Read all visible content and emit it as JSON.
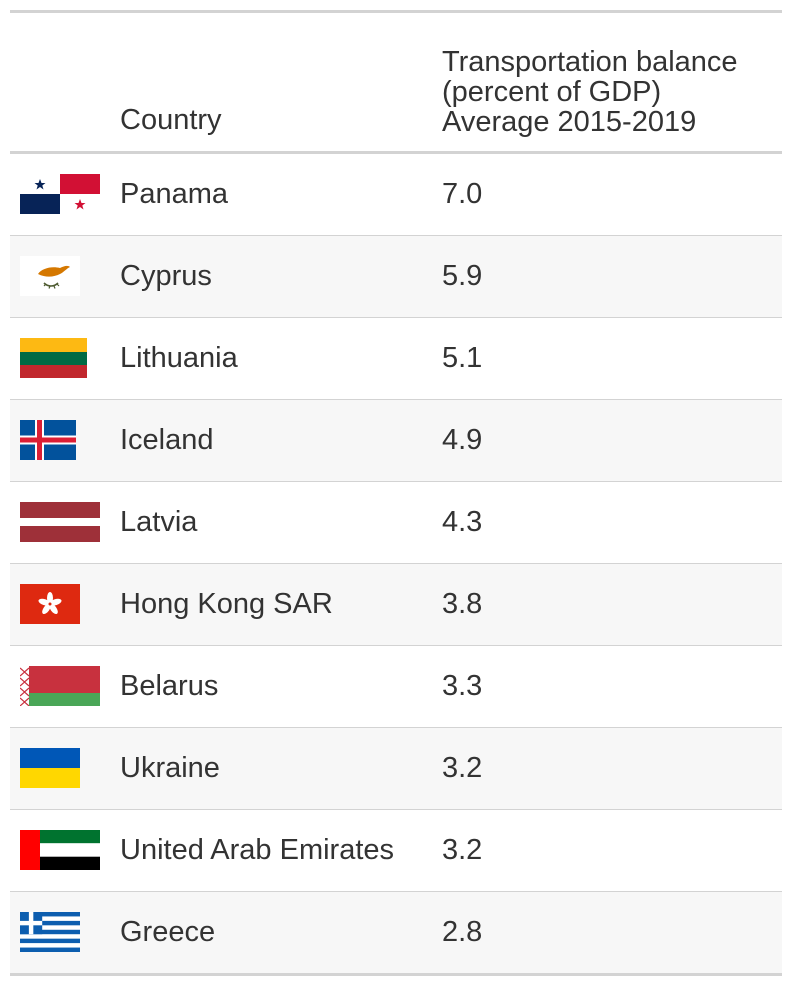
{
  "table": {
    "header": {
      "country": "Country",
      "metric_lines": [
        "Transportation balance",
        "(percent of GDP)",
        "Average 2015-2019"
      ]
    },
    "rows": [
      {
        "flag": "panama-flag-icon",
        "country": "Panama",
        "value": "7.0"
      },
      {
        "flag": "cyprus-flag-icon",
        "country": "Cyprus",
        "value": "5.9"
      },
      {
        "flag": "lithuania-flag-icon",
        "country": "Lithuania",
        "value": "5.1"
      },
      {
        "flag": "iceland-flag-icon",
        "country": "Iceland",
        "value": "4.9"
      },
      {
        "flag": "latvia-flag-icon",
        "country": "Latvia",
        "value": "4.3"
      },
      {
        "flag": "hong-kong-flag-icon",
        "country": "Hong Kong SAR",
        "value": "3.8"
      },
      {
        "flag": "belarus-flag-icon",
        "country": "Belarus",
        "value": "3.3"
      },
      {
        "flag": "ukraine-flag-icon",
        "country": "Ukraine",
        "value": "3.2"
      },
      {
        "flag": "uae-flag-icon",
        "country": "United Arab Emirates",
        "value": "3.2"
      },
      {
        "flag": "greece-flag-icon",
        "country": "Greece",
        "value": "2.8"
      }
    ]
  }
}
